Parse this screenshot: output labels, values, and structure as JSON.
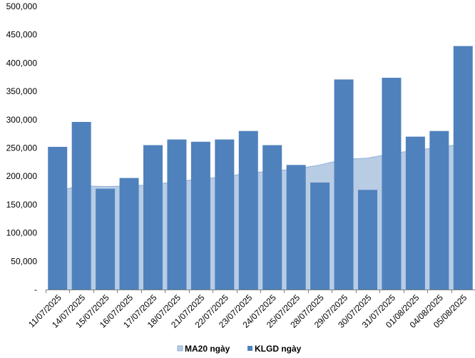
{
  "chart_data": {
    "type": "bar",
    "categories": [
      "11/07/2025",
      "14/07/2025",
      "15/07/2025",
      "16/07/2025",
      "17/07/2025",
      "18/07/2025",
      "21/07/2025",
      "22/07/2025",
      "23/07/2025",
      "24/07/2025",
      "25/07/2025",
      "28/07/2025",
      "29/07/2025",
      "30/07/2025",
      "31/07/2025",
      "01/08/2025",
      "04/08/2025",
      "05/08/2025"
    ],
    "series": [
      {
        "name": "MA20 ngày",
        "kind": "area",
        "color": "#b8cce4",
        "edge_color": "#8eaed6",
        "values": [
          178000,
          183000,
          182000,
          183000,
          185000,
          191000,
          195000,
          199000,
          206000,
          209000,
          213000,
          220000,
          230000,
          232000,
          240000,
          246000,
          251000,
          260000
        ]
      },
      {
        "name": "KLGD ngày",
        "kind": "bar",
        "color": "#4f81bd",
        "values": [
          252000,
          296000,
          178000,
          197000,
          255000,
          265000,
          261000,
          265000,
          280000,
          255000,
          220000,
          189000,
          371000,
          176000,
          374000,
          270000,
          280000,
          430000
        ]
      }
    ],
    "ylim": [
      0,
      500000
    ],
    "y_ticks": [
      0,
      50000,
      100000,
      150000,
      200000,
      250000,
      300000,
      350000,
      400000,
      450000,
      500000
    ],
    "y_tick_labels": [
      "-",
      "50,000",
      "100,000",
      "150,000",
      "200,000",
      "250,000",
      "300,000",
      "350,000",
      "400,000",
      "450,000",
      "500,000"
    ],
    "grid": false,
    "legend_position": "bottom"
  }
}
